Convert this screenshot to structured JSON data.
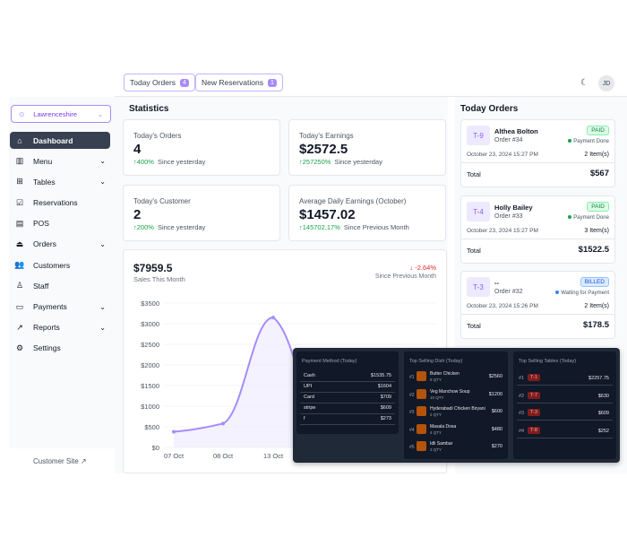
{
  "header": {
    "today_orders_label": "Today Orders",
    "today_orders_count": "4",
    "new_reservations_label": "New Reservations",
    "new_reservations_count": "1",
    "user_initials": "JD"
  },
  "sidebar": {
    "location": "Lawrenceshire",
    "items": [
      {
        "label": "Dashboard",
        "icon": "home-icon",
        "glyph": "⌂"
      },
      {
        "label": "Menu",
        "icon": "menu-icon",
        "glyph": "▥"
      },
      {
        "label": "Tables",
        "icon": "tables-icon",
        "glyph": "⊞"
      },
      {
        "label": "Reservations",
        "icon": "calendar-check-icon",
        "glyph": "☑"
      },
      {
        "label": "POS",
        "icon": "pos-icon",
        "glyph": "▤"
      },
      {
        "label": "Orders",
        "icon": "cloche-icon",
        "glyph": "⏏"
      },
      {
        "label": "Customers",
        "icon": "users-icon",
        "glyph": "👥"
      },
      {
        "label": "Staff",
        "icon": "staff-icon",
        "glyph": "♙"
      },
      {
        "label": "Payments",
        "icon": "wallet-icon",
        "glyph": "▭"
      },
      {
        "label": "Reports",
        "icon": "chart-icon",
        "glyph": "↗"
      },
      {
        "label": "Settings",
        "icon": "gear-icon",
        "glyph": "⚙"
      }
    ],
    "customer_site": "Customer Site"
  },
  "statistics": {
    "title": "Statistics",
    "cards": [
      {
        "label": "Today's Orders",
        "value": "4",
        "change": "400%",
        "since": "Since yesterday"
      },
      {
        "label": "Today's Earnings",
        "value": "$2572.5",
        "change": "257250%",
        "since": "Since yesterday"
      },
      {
        "label": "Today's Customer",
        "value": "2",
        "change": "200%",
        "since": "Since yesterday"
      },
      {
        "label": "Average Daily Earnings (October)",
        "value": "$1457.02",
        "change": "145702.17%",
        "since": "Since Previous Month"
      }
    ],
    "sales": {
      "value": "$7959.5",
      "label": "Sales This Month",
      "change": "-2.64%",
      "since": "Since Previous Month"
    }
  },
  "chart_data": {
    "type": "area",
    "yticks": [
      "$0",
      "$500",
      "$1000",
      "$1500",
      "$2000",
      "$2500",
      "$3000",
      "$3500"
    ],
    "xticks": [
      "07 Oct",
      "08 Oct",
      "13 Oct"
    ],
    "ylim": [
      0,
      3500
    ],
    "points": [
      {
        "x": "07 Oct",
        "y": 380
      },
      {
        "x": "08 Oct",
        "y": 580
      },
      {
        "x": "13 Oct",
        "y": 3150
      }
    ],
    "color": "#a78bfa"
  },
  "today_orders": {
    "title": "Today Orders",
    "total_label": "Total",
    "orders": [
      {
        "table": "T-9",
        "name": "Althea Bolton",
        "order": "Order #34",
        "status": "PAID",
        "status_sub": "Payment Done",
        "date": "October 23, 2024 15:27 PM",
        "items": "2 Item(s)",
        "total": "$567"
      },
      {
        "table": "T-4",
        "name": "Holly Bailey",
        "order": "Order #33",
        "status": "PAID",
        "status_sub": "Payment Done",
        "date": "October 23, 2024 15:27 PM",
        "items": "3 Item(s)",
        "total": "$1522.5"
      },
      {
        "table": "T-3",
        "name": "--",
        "order": "Order #32",
        "status": "BILLED",
        "status_sub": "Waiting for Payment",
        "date": "October 23, 2024 15:26 PM",
        "items": "2 Item(s)",
        "total": "$178.5"
      }
    ]
  },
  "overlay": {
    "payment_title": "Payment Method (Today)",
    "payments": [
      {
        "method": "Cash",
        "amount": "$1535.75"
      },
      {
        "method": "UPI",
        "amount": "$1604"
      },
      {
        "method": "Card",
        "amount": "$709"
      },
      {
        "method": "stripe",
        "amount": "$609"
      },
      {
        "method": "f",
        "amount": "$273"
      }
    ],
    "dish_title": "Top Selling Dish (Today)",
    "dishes": [
      {
        "rank": "#1",
        "name": "Butter Chicken",
        "qty": "9 QTY",
        "amount": "$2560"
      },
      {
        "rank": "#2",
        "name": "Veg Manchow Soup",
        "qty": "10 QTY",
        "amount": "$1200"
      },
      {
        "rank": "#3",
        "name": "Hyderabadi Chicken Biryani",
        "qty": "2 QTY",
        "amount": "$600"
      },
      {
        "rank": "#4",
        "name": "Masala Dosa",
        "qty": "4 QTY",
        "amount": "$480"
      },
      {
        "rank": "#5",
        "name": "Idli Sambar",
        "qty": "3 QTY",
        "amount": "$270"
      }
    ],
    "tables_title": "Top Selling Tables (Today)",
    "tables": [
      {
        "rank": "#1",
        "table": "T-1",
        "amount": "$2257.75"
      },
      {
        "rank": "#2",
        "table": "T-7",
        "amount": "$630"
      },
      {
        "rank": "#3",
        "table": "T-3",
        "amount": "$609"
      },
      {
        "rank": "#4",
        "table": "T-8",
        "amount": "$252"
      }
    ]
  }
}
